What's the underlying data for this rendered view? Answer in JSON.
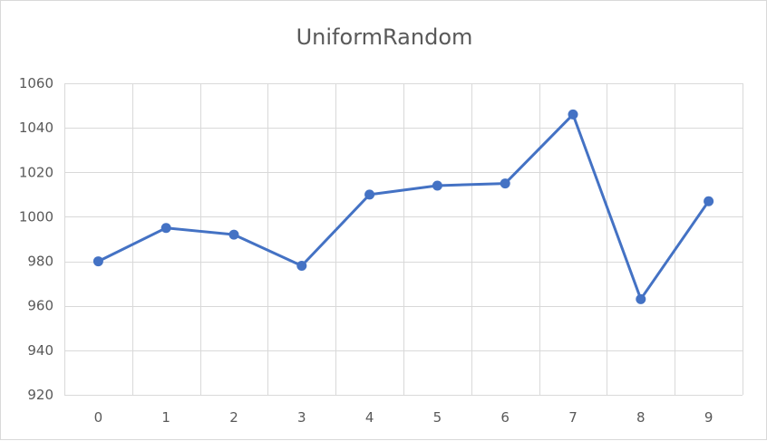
{
  "chart_data": {
    "type": "line",
    "title": "UniformRandom",
    "xlabel": "",
    "ylabel": "",
    "categories": [
      "0",
      "1",
      "2",
      "3",
      "4",
      "5",
      "6",
      "7",
      "8",
      "9"
    ],
    "series": [
      {
        "values": [
          980,
          995,
          992,
          978,
          1010,
          1014,
          1015,
          1046,
          963,
          1007
        ]
      }
    ],
    "ylim": [
      920,
      1060
    ],
    "yticks": [
      920,
      940,
      960,
      980,
      1000,
      1020,
      1040,
      1060
    ],
    "grid": true,
    "legend": "none",
    "colors": {
      "line": "#4472c4",
      "grid": "#d9d9d9",
      "text": "#595959"
    }
  }
}
